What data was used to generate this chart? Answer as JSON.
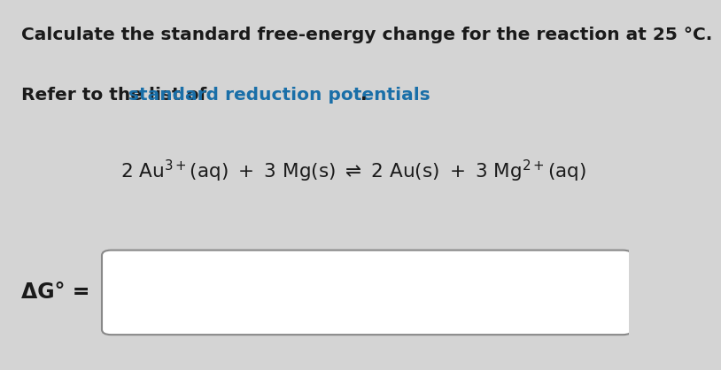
{
  "bg_color": "#d4d4d4",
  "line1_text": " Calculate the standard free-energy change for the reaction at 25 °C.",
  "line2_prefix": " Refer to the list of ",
  "line2_link": "standard reduction potentials",
  "line2_suffix": ".",
  "label_delta_g": "ΔG° =",
  "text_color": "#1a1a1a",
  "link_color": "#1a6fa8",
  "box_color": "#ffffff",
  "box_border": "#888888",
  "fontsize_line1": 14.5,
  "fontsize_line2": 14.5,
  "fontsize_eq": 15.5,
  "fontsize_label": 17
}
